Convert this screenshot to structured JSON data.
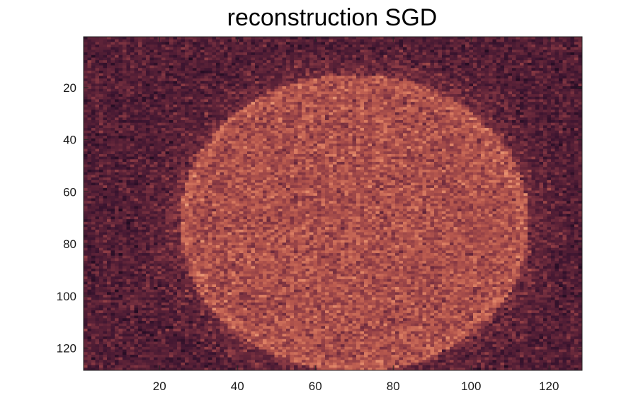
{
  "chart_data": {
    "type": "heatmap",
    "title": "reconstruction SGD",
    "xlabel": "",
    "ylabel": "",
    "x_range": [
      0.5,
      128.5
    ],
    "y_range": [
      0.5,
      128.5
    ],
    "y_direction": "reversed",
    "x_ticks": [
      20,
      40,
      60,
      80,
      100,
      120
    ],
    "y_ticks": [
      20,
      40,
      60,
      80,
      100,
      120
    ],
    "x_tick_labels": [
      "20",
      "40",
      "60",
      "80",
      "100",
      "120"
    ],
    "y_tick_labels": [
      "20",
      "40",
      "60",
      "80",
      "100",
      "120"
    ],
    "grid": false,
    "colorbar": false,
    "grid_size": [
      128,
      128
    ],
    "description_of_values": "noisy reconstruction of a bright elliptical disk on a dark background",
    "disk_center": [
      70,
      72
    ],
    "disk_semi_axes": [
      45,
      57
    ],
    "disk_level": 0.62,
    "background_level": 0.28,
    "noise_level": 0.17,
    "colormap": [
      "#1e0a1f",
      "#3d1530",
      "#5e2338",
      "#8a3a44",
      "#b8594e",
      "#dd7f63",
      "#f2a982"
    ]
  }
}
